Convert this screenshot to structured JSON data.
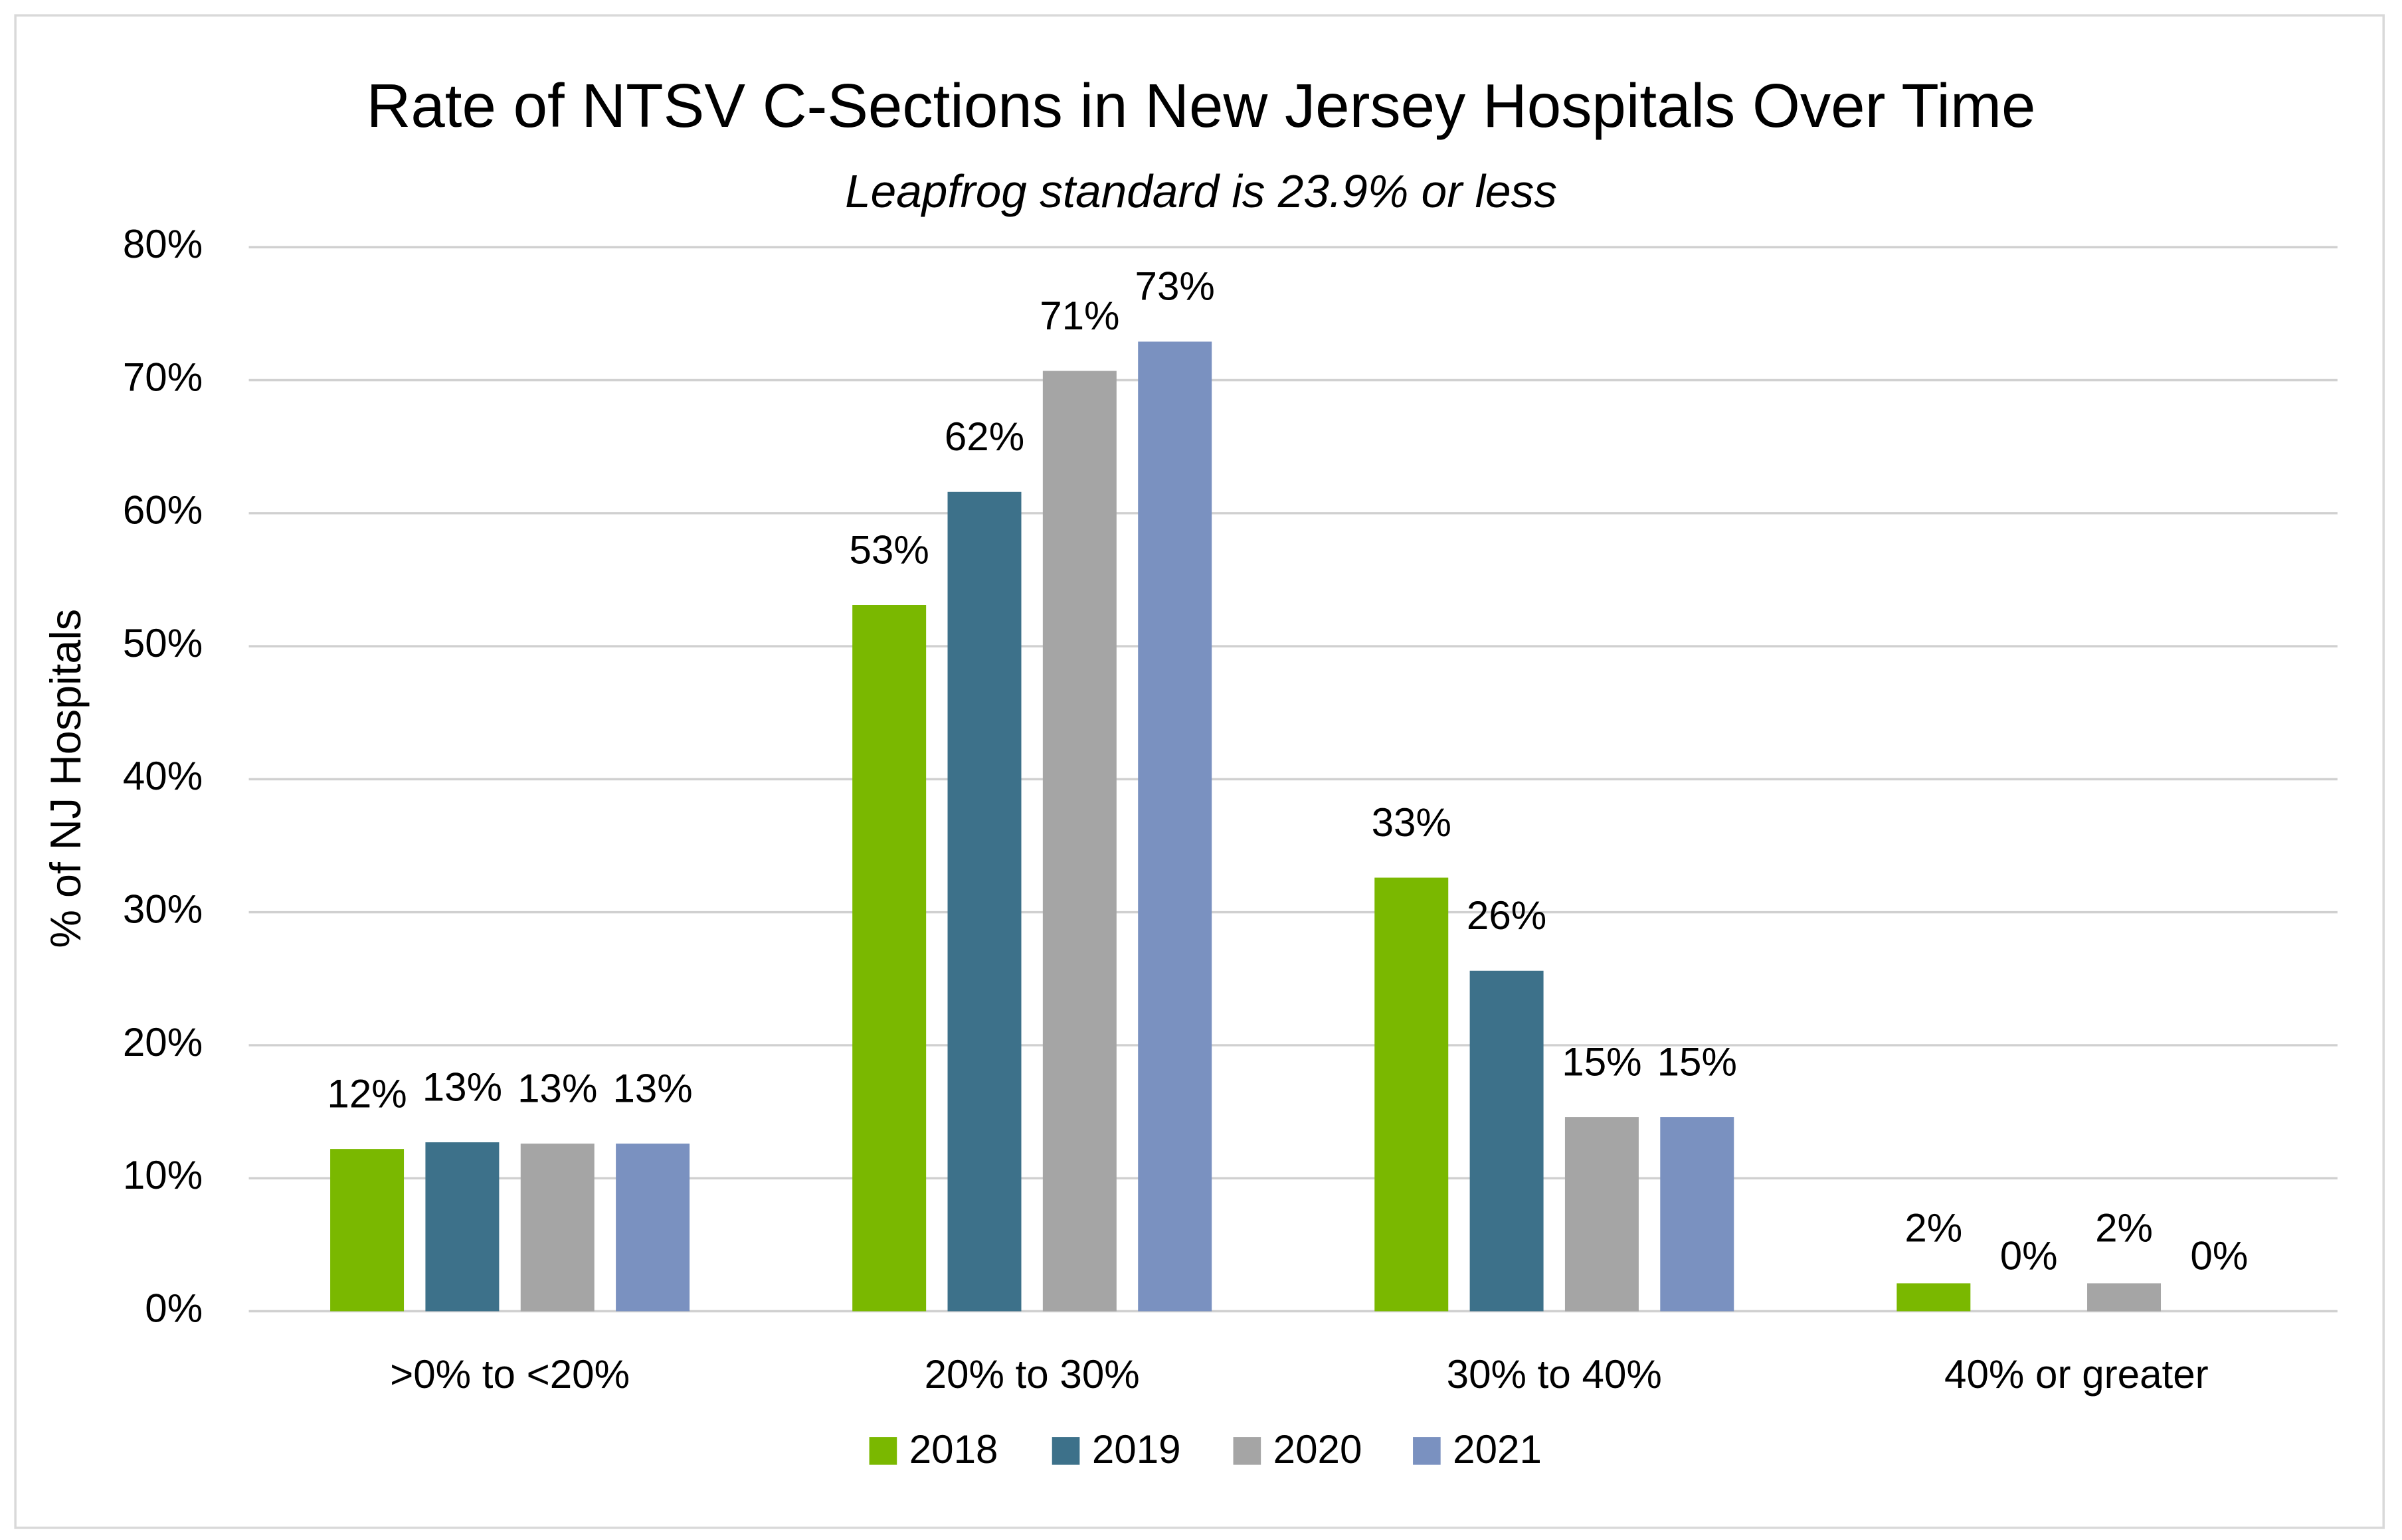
{
  "chart_data": {
    "type": "bar",
    "title": "Rate of NTSV C-Sections in New Jersey Hospitals Over Time",
    "subtitle": "Leapfrog standard is 23.9% or less",
    "y_label": "% of NJ Hospitals",
    "categories": [
      ">0% to <20%",
      "20% to 30%",
      "30% to 40%",
      "40% or greater"
    ],
    "series": [
      {
        "name": "2018",
        "color": "#7ab800",
        "values": [
          12.2,
          53.1,
          32.6,
          2.1
        ],
        "value_labels": [
          "12%",
          "53%",
          "33%",
          "2%"
        ]
      },
      {
        "name": "2019",
        "color": "#3d718a",
        "values": [
          12.7,
          61.6,
          25.6,
          0
        ],
        "value_labels": [
          "13%",
          "62%",
          "26%",
          "0%"
        ]
      },
      {
        "name": "2020",
        "color": "#a5a5a5",
        "values": [
          12.6,
          70.7,
          14.6,
          2.1
        ],
        "value_labels": [
          "13%",
          "71%",
          "15%",
          "2%"
        ]
      },
      {
        "name": "2021",
        "color": "#7a91c0",
        "values": [
          12.6,
          72.9,
          14.6,
          0
        ],
        "value_labels": [
          "13%",
          "73%",
          "15%",
          "0%"
        ]
      }
    ],
    "ylim": [
      0,
      80
    ],
    "yticks": [
      {
        "value": 0,
        "label": "0%"
      },
      {
        "value": 10,
        "label": "10%"
      },
      {
        "value": 20,
        "label": "20%"
      },
      {
        "value": 30,
        "label": "30%"
      },
      {
        "value": 40,
        "label": "40%"
      },
      {
        "value": 50,
        "label": "50%"
      },
      {
        "value": 60,
        "label": "60%"
      },
      {
        "value": 70,
        "label": "70%"
      },
      {
        "value": 80,
        "label": "80%"
      }
    ],
    "grid": true,
    "legend": "bottom"
  }
}
